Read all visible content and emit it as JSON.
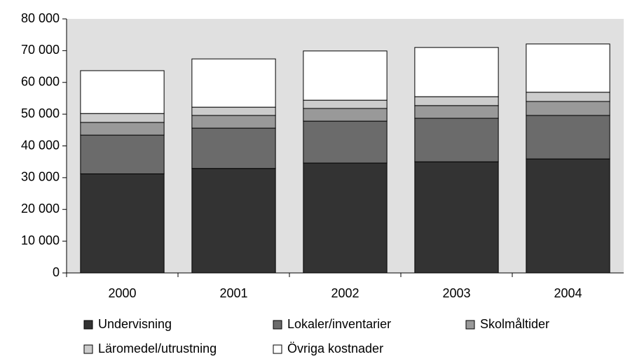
{
  "chart_data": {
    "type": "bar",
    "stacked": true,
    "categories": [
      "2000",
      "2001",
      "2002",
      "2003",
      "2004"
    ],
    "series": [
      {
        "name": "Undervisning",
        "color": "#333333",
        "values": [
          31200,
          32900,
          34600,
          35000,
          35900
        ]
      },
      {
        "name": "Lokaler/inventarier",
        "color": "#6b6b6b",
        "values": [
          12200,
          12700,
          13200,
          13700,
          13700
        ]
      },
      {
        "name": "Skolmåltider",
        "color": "#999999",
        "values": [
          4000,
          4000,
          4000,
          4000,
          4400
        ]
      },
      {
        "name": "Läromedel/utrustning",
        "color": "#cccccc",
        "values": [
          2800,
          2600,
          2600,
          2800,
          2900
        ]
      },
      {
        "name": "Övriga kostnader",
        "color": "#ffffff",
        "values": [
          13500,
          15200,
          15500,
          15500,
          15200
        ]
      }
    ],
    "ylim": [
      0,
      80000
    ],
    "yticks": [
      {
        "value": 0,
        "label": "0"
      },
      {
        "value": 10000,
        "label": "10 000"
      },
      {
        "value": 20000,
        "label": "20 000"
      },
      {
        "value": 30000,
        "label": "30 000"
      },
      {
        "value": 40000,
        "label": "40 000"
      },
      {
        "value": 50000,
        "label": "50 000"
      },
      {
        "value": 60000,
        "label": "60 000"
      },
      {
        "value": 70000,
        "label": "70 000"
      },
      {
        "value": 80000,
        "label": "80 000"
      }
    ],
    "legend": "bottom"
  }
}
